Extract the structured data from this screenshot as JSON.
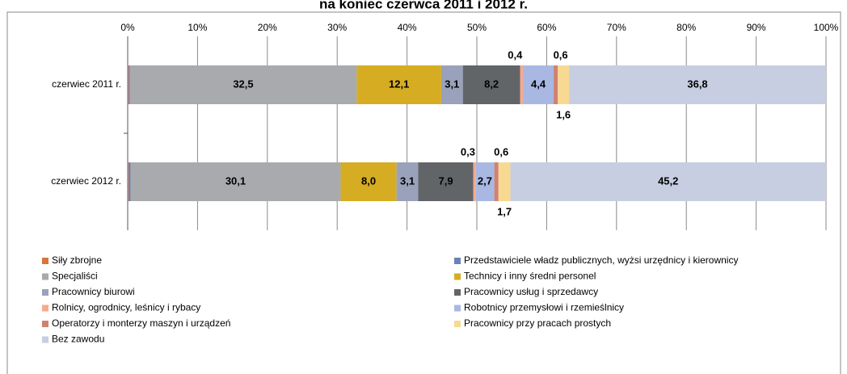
{
  "chart_data": {
    "type": "stacked_barh",
    "title": "na koniec czerwca 2011 i 2012 r.",
    "categories": [
      "czerwiec 2011 r.",
      "czerwiec 2012 r."
    ],
    "xlim": [
      0,
      100
    ],
    "xticks": [
      {
        "value": 0,
        "label": "0%"
      },
      {
        "value": 10,
        "label": "10%"
      },
      {
        "value": 20,
        "label": "20%"
      },
      {
        "value": 30,
        "label": "30%"
      },
      {
        "value": 40,
        "label": "40%"
      },
      {
        "value": 50,
        "label": "50%"
      },
      {
        "value": 60,
        "label": "60%"
      },
      {
        "value": 70,
        "label": "70%"
      },
      {
        "value": 80,
        "label": "80%"
      },
      {
        "value": 90,
        "label": "90%"
      },
      {
        "value": 100,
        "label": "100%"
      }
    ],
    "grid": true,
    "series": [
      {
        "name": "Siły zbrojne",
        "color": "#d9743a",
        "values": [
          0.1,
          0.1
        ]
      },
      {
        "name": "Przedstawiciele władz publicznych, wyżsi urzędnicy i kierownicy",
        "color": "#6a82b5",
        "values": [
          0.2,
          0.3
        ]
      },
      {
        "name": "Specjaliści",
        "color": "#a8aaad",
        "values": [
          32.5,
          30.1
        ],
        "value_labels": [
          "32,5",
          "30,1"
        ]
      },
      {
        "name": "Technicy i inny średni personel",
        "color": "#d6ac22",
        "values": [
          12.1,
          8.0
        ],
        "value_labels": [
          "12,1",
          "8,0"
        ]
      },
      {
        "name": "Pracownicy biurowi",
        "color": "#9aa1ba",
        "values": [
          3.1,
          3.1
        ],
        "value_labels": [
          "3,1",
          "3,1"
        ]
      },
      {
        "name": "Pracownicy usług i sprzedawcy",
        "color": "#626568",
        "values": [
          8.2,
          7.9
        ],
        "value_labels": [
          "8,2",
          "7,9"
        ]
      },
      {
        "name": "Rolnicy, ogrodnicy, leśnicy i rybacy",
        "color": "#f7a98b",
        "values": [
          0.4,
          0.3
        ],
        "value_labels": [
          "0,4",
          "0,3"
        ]
      },
      {
        "name": "Robotnicy przemysłowi i rzemieślnicy",
        "color": "#a9b8e2",
        "values": [
          4.4,
          2.7
        ],
        "value_labels": [
          "4,4",
          "2,7"
        ]
      },
      {
        "name": "Operatorzy i monterzy maszyn i urządzeń",
        "color": "#d08272",
        "values": [
          0.6,
          0.6
        ],
        "value_labels": [
          "0,6",
          "0,6"
        ]
      },
      {
        "name": "Pracownicy przy pracach prostych",
        "color": "#f8d992",
        "values": [
          1.6,
          1.7
        ],
        "value_labels": [
          "1,6",
          "1,7"
        ]
      },
      {
        "name": "Bez zawodu",
        "color": "#c7cee2",
        "values": [
          36.8,
          45.2
        ],
        "value_labels": [
          "36,8",
          "45,2"
        ]
      }
    ]
  }
}
